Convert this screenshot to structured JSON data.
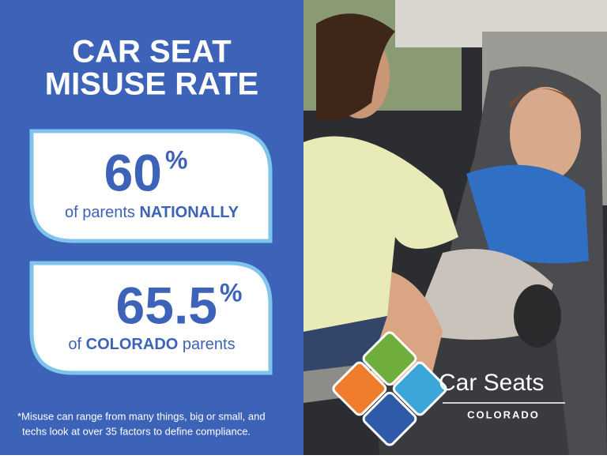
{
  "header": {
    "title_lines": [
      "CAR SEAT",
      "MISUSE RATE"
    ]
  },
  "stats": [
    {
      "value": "60",
      "unit": "%",
      "label_parts": [
        "of parents ",
        "NATIONALLY"
      ]
    },
    {
      "value": "65.5",
      "unit": "%",
      "label_parts": [
        "of ",
        "COLORADO",
        " parents"
      ]
    }
  ],
  "footnote": [
    "*Misuse can range from many things, big or small, and",
    "techs look at over 35 factors to define compliance."
  ],
  "logo": {
    "name": "Car Seats",
    "region": "COLORADO"
  }
}
